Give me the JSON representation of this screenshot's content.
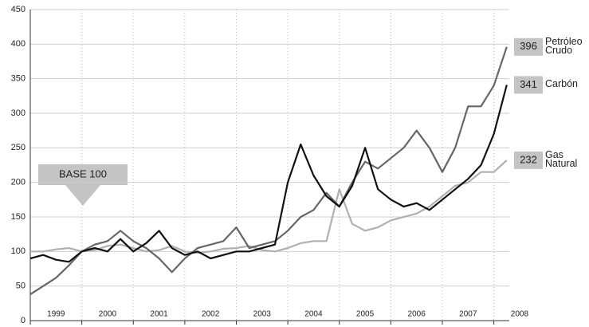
{
  "chart_data": {
    "type": "line",
    "annotation": "BASE 100",
    "x": [
      1999,
      1999.25,
      1999.5,
      1999.75,
      2000,
      2000.25,
      2000.5,
      2000.75,
      2001,
      2001.25,
      2001.5,
      2001.75,
      2002,
      2002.25,
      2002.5,
      2002.75,
      2003,
      2003.25,
      2003.5,
      2003.75,
      2004,
      2004.25,
      2004.5,
      2004.75,
      2005,
      2005.25,
      2005.5,
      2005.75,
      2006,
      2006.25,
      2006.5,
      2006.75,
      2007,
      2007.25,
      2007.5,
      2007.75,
      2008,
      2008.25
    ],
    "series": [
      {
        "name": "Petróleo Crudo",
        "color": "#666666",
        "values": [
          38,
          50,
          62,
          80,
          100,
          110,
          115,
          130,
          115,
          105,
          90,
          70,
          90,
          105,
          110,
          115,
          135,
          105,
          110,
          115,
          130,
          150,
          160,
          185,
          165,
          200,
          230,
          220,
          235,
          250,
          275,
          250,
          215,
          250,
          310,
          310,
          340,
          396
        ]
      },
      {
        "name": "Carbón",
        "color": "#111111",
        "values": [
          90,
          95,
          88,
          85,
          100,
          105,
          100,
          118,
          100,
          112,
          130,
          105,
          95,
          100,
          90,
          95,
          100,
          100,
          105,
          110,
          200,
          255,
          210,
          180,
          165,
          195,
          250,
          190,
          175,
          165,
          170,
          160,
          175,
          190,
          205,
          225,
          270,
          341
        ]
      },
      {
        "name": "Gas Natural",
        "color": "#b0b0b0",
        "values": [
          100,
          100,
          103,
          105,
          100,
          102,
          108,
          110,
          105,
          100,
          102,
          108,
          100,
          98,
          100,
          104,
          105,
          108,
          102,
          100,
          105,
          112,
          115,
          115,
          190,
          140,
          130,
          135,
          145,
          150,
          155,
          165,
          180,
          195,
          200,
          215,
          215,
          232
        ]
      }
    ],
    "xlim": [
      1999,
      2008.3
    ],
    "xticks": [
      {
        "value": 1999,
        "label": "1999"
      },
      {
        "value": 2000,
        "label": "2000"
      },
      {
        "value": 2001,
        "label": "2001"
      },
      {
        "value": 2002,
        "label": "2002"
      },
      {
        "value": 2003,
        "label": "2003"
      },
      {
        "value": 2004,
        "label": "2004"
      },
      {
        "value": 2005,
        "label": "2005"
      },
      {
        "value": 2006,
        "label": "2006"
      },
      {
        "value": 2007,
        "label": "2007"
      },
      {
        "value": 2008,
        "label": "2008"
      }
    ],
    "ylim": [
      0,
      450
    ],
    "yticks": [
      0,
      50,
      100,
      150,
      200,
      250,
      300,
      350,
      400,
      450
    ],
    "grid": true
  }
}
